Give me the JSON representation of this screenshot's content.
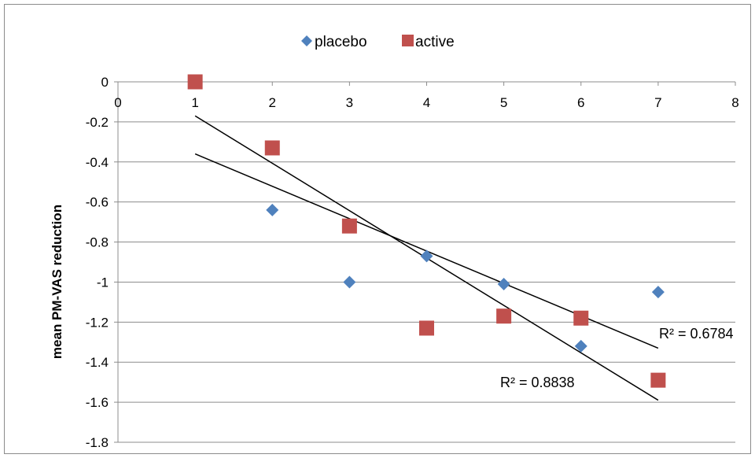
{
  "chart_data": {
    "type": "scatter",
    "title": "",
    "xlabel": "",
    "ylabel": "mean PM-VAS reduction",
    "xlim": [
      0,
      8
    ],
    "ylim": [
      -1.8,
      0
    ],
    "xticks": [
      "0",
      "1",
      "2",
      "3",
      "4",
      "5",
      "6",
      "7",
      "8"
    ],
    "yticks": [
      "0",
      "-0.2",
      "-0.4",
      "-0.6",
      "-0.8",
      "-1",
      "-1.2",
      "-1.4",
      "-1.6",
      "-1.8"
    ],
    "grid": "horizontal",
    "legend_position": "top",
    "series": [
      {
        "name": "placebo",
        "marker": "diamond",
        "color": "#4f81bd",
        "points": [
          [
            2,
            -0.64
          ],
          [
            3,
            -1.0
          ],
          [
            4,
            -0.87
          ],
          [
            5,
            -1.01
          ],
          [
            6,
            -1.32
          ],
          [
            7,
            -1.05
          ]
        ]
      },
      {
        "name": "active",
        "marker": "square",
        "color": "#c0504d",
        "points": [
          [
            1,
            0.0
          ],
          [
            2,
            -0.33
          ],
          [
            3,
            -0.72
          ],
          [
            4,
            -1.23
          ],
          [
            5,
            -1.17
          ],
          [
            6,
            -1.18
          ],
          [
            7,
            -1.49
          ]
        ]
      }
    ],
    "trendlines": [
      {
        "label": "R² = 0.6784",
        "from": [
          1,
          -0.36
        ],
        "to": [
          7,
          -1.33
        ]
      },
      {
        "label": "R² = 0.8838",
        "from": [
          1,
          -0.17
        ],
        "to": [
          7,
          -1.59
        ]
      }
    ]
  }
}
